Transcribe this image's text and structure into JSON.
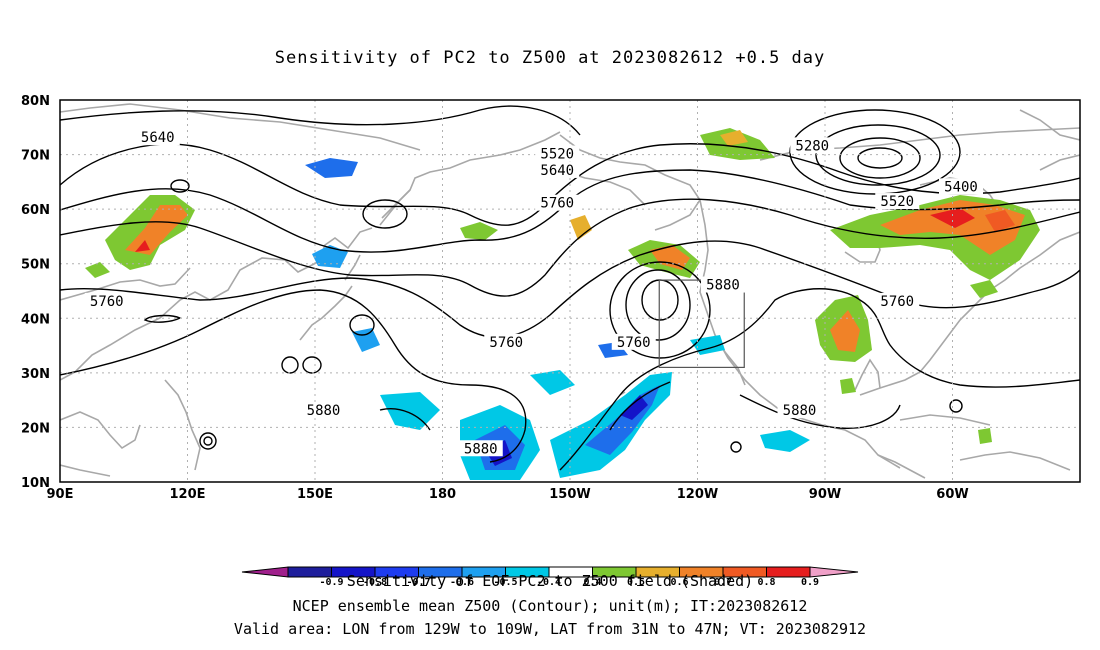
{
  "title": "Sensitivity of PC2 to Z500 at 2023082612 +0.5 day",
  "lat_labels": [
    "80N",
    "70N",
    "60N",
    "50N",
    "40N",
    "30N",
    "20N",
    "10N"
  ],
  "lon_labels": [
    "90E",
    "120E",
    "150E",
    "180",
    "150W",
    "120W",
    "90W",
    "60W"
  ],
  "contours": [
    {
      "label": "5280",
      "lon": -93,
      "lat": 71.5
    },
    {
      "label": "5400",
      "lon": -58,
      "lat": 64
    },
    {
      "label": "5520",
      "lon": -153,
      "lat": 70
    },
    {
      "label": "5520",
      "lon": -73,
      "lat": 61.3
    },
    {
      "label": "5640",
      "lon": 113,
      "lat": 73
    },
    {
      "label": "5640",
      "lon": -153,
      "lat": 67
    },
    {
      "label": "5760",
      "lon": -153,
      "lat": 61
    },
    {
      "label": "5760",
      "lon": 101,
      "lat": 43
    },
    {
      "label": "5760",
      "lon": 195,
      "lat": 35.5
    },
    {
      "label": "5760",
      "lon": -135,
      "lat": 35.5
    },
    {
      "label": "5760",
      "lon": -73,
      "lat": 43
    },
    {
      "label": "5880",
      "lon": -114,
      "lat": 46
    },
    {
      "label": "5880",
      "lon": 152,
      "lat": 23
    },
    {
      "label": "5880",
      "lon": 189,
      "lat": 16
    },
    {
      "label": "5880",
      "lon": -96,
      "lat": 23
    }
  ],
  "colorbar": {
    "ticks": [
      "-0.9",
      "-0.8",
      "-0.7",
      "-0.6",
      "-0.5",
      "-0.4",
      "0.4",
      "0.5",
      "0.6",
      "0.7",
      "0.8",
      "0.9"
    ],
    "colors": [
      "#a0208c",
      "#1e1e9c",
      "#1414c8",
      "#1e3cf0",
      "#1e6eeb",
      "#1ea0f0",
      "#00c8e6",
      "#ffffff",
      "#7ec832",
      "#e6af2d",
      "#f08228",
      "#f05a23",
      "#e61e1e",
      "#f0a0c8"
    ]
  },
  "valid_area": {
    "lon_from": -129,
    "lon_to": -109,
    "lat_from": 31,
    "lat_to": 47
  },
  "footer": {
    "line1": "Sensitivity of EOF PC2 to Z500 field (Shaded)",
    "line2": "NCEP ensemble mean Z500 (Contour); unit(m); IT:2023082612",
    "line3": "Valid area: LON from 129W to 109W, LAT from 31N to 47N; VT: 2023082912"
  }
}
